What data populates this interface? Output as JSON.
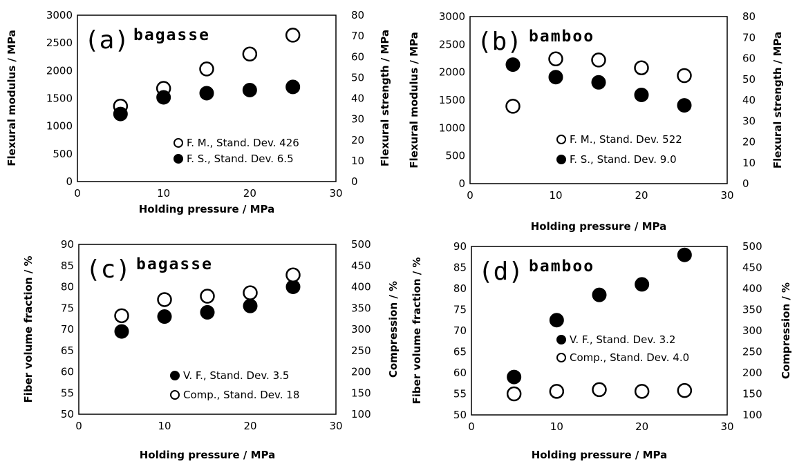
{
  "chart_data": [
    {
      "type": "scatter",
      "panel_label": "(a)",
      "panel_title": "bagasse",
      "xlabel": "Holding pressure / MPa",
      "ylabel": "Flexural modulus / MPa",
      "y2label": "Flexural strength / MPa",
      "xlim": [
        0,
        30
      ],
      "ylim": [
        0,
        3000
      ],
      "y2lim": [
        0,
        80
      ],
      "xticks": [
        0,
        10,
        20,
        30
      ],
      "yticks": [
        0,
        500,
        1000,
        1500,
        2000,
        2500,
        3000
      ],
      "y2ticks": [
        0,
        10,
        20,
        30,
        40,
        50,
        60,
        70,
        80
      ],
      "grid": false,
      "legend_position": "lower-right",
      "series": [
        {
          "label": "F. M., Stand. Dev. 426",
          "marker": "open-circle",
          "axis": "left",
          "x": [
            5,
            10,
            15,
            20,
            25
          ],
          "y": [
            1360,
            1680,
            2030,
            2300,
            2640
          ]
        },
        {
          "label": "F. S., Stand. Dev. 6.5",
          "marker": "filled-circle",
          "axis": "right",
          "x": [
            5,
            10,
            15,
            20,
            25
          ],
          "y": [
            32.5,
            40.5,
            42.5,
            44,
            45.5
          ]
        }
      ]
    },
    {
      "type": "scatter",
      "panel_label": "(b)",
      "panel_title": "bamboo",
      "xlabel": "Holding pressure / MPa",
      "ylabel": "Flexural modulus / MPa",
      "y2label": "Flexural strength / MPa",
      "xlim": [
        0,
        30
      ],
      "ylim": [
        0,
        3000
      ],
      "y2lim": [
        0,
        80
      ],
      "xticks": [
        0,
        10,
        20,
        30
      ],
      "yticks": [
        0,
        500,
        1000,
        1500,
        2000,
        2500,
        3000
      ],
      "y2ticks": [
        0,
        10,
        20,
        30,
        40,
        50,
        60,
        70,
        80
      ],
      "grid": false,
      "legend_position": "lower-right",
      "series": [
        {
          "label": "F. M., Stand. Dev. 522",
          "marker": "open-circle",
          "axis": "left",
          "x": [
            5,
            10,
            15,
            20,
            25
          ],
          "y": [
            1390,
            2240,
            2220,
            2080,
            1940
          ]
        },
        {
          "label": "F. S., Stand. Dev. 9.0",
          "marker": "filled-circle",
          "axis": "right",
          "x": [
            5,
            10,
            15,
            20,
            25
          ],
          "y": [
            57,
            51,
            48.5,
            42.5,
            37.5
          ]
        }
      ]
    },
    {
      "type": "scatter",
      "panel_label": "(c)",
      "panel_title": "bagasse",
      "xlabel": "Holding pressure / MPa",
      "ylabel": "Fiber volume fraction / %",
      "y2label": "Compression / %",
      "xlim": [
        0,
        30
      ],
      "ylim": [
        50,
        90
      ],
      "y2lim": [
        100,
        500
      ],
      "xticks": [
        0,
        10,
        20,
        30
      ],
      "yticks": [
        50,
        55,
        60,
        65,
        70,
        75,
        80,
        85,
        90
      ],
      "y2ticks": [
        100,
        150,
        200,
        250,
        300,
        350,
        400,
        450,
        500
      ],
      "grid": false,
      "legend_position": "lower-right",
      "series": [
        {
          "label": "V. F., Stand. Dev. 3.5",
          "marker": "filled-circle",
          "axis": "left",
          "x": [
            5,
            10,
            15,
            20,
            25
          ],
          "y": [
            69.5,
            73,
            74,
            75.5,
            80
          ]
        },
        {
          "label": "Comp., Stand. Dev. 18",
          "marker": "open-circle",
          "axis": "right",
          "x": [
            5,
            10,
            15,
            20,
            25
          ],
          "y": [
            332,
            370,
            378,
            386,
            428
          ]
        }
      ]
    },
    {
      "type": "scatter",
      "panel_label": "(d)",
      "panel_title": "bamboo",
      "xlabel": "Holding pressure / MPa",
      "ylabel": "Fiber volume fraction / %",
      "y2label": "Compression / %",
      "xlim": [
        0,
        30
      ],
      "ylim": [
        50,
        90
      ],
      "y2lim": [
        100,
        500
      ],
      "xticks": [
        0,
        10,
        20,
        30
      ],
      "yticks": [
        50,
        55,
        60,
        65,
        70,
        75,
        80,
        85,
        90
      ],
      "y2ticks": [
        100,
        150,
        200,
        250,
        300,
        350,
        400,
        450,
        500
      ],
      "grid": false,
      "legend_position": "lower-right",
      "series": [
        {
          "label": "V. F., Stand. Dev. 3.2",
          "marker": "filled-circle",
          "axis": "left",
          "x": [
            5,
            10,
            15,
            20,
            25
          ],
          "y": [
            59,
            72.5,
            78.5,
            81,
            88
          ]
        },
        {
          "label": "Comp., Stand. Dev. 4.0",
          "marker": "open-circle",
          "axis": "right",
          "x": [
            5,
            10,
            15,
            20,
            25
          ],
          "y": [
            150,
            156,
            160,
            156,
            158
          ]
        }
      ]
    }
  ]
}
